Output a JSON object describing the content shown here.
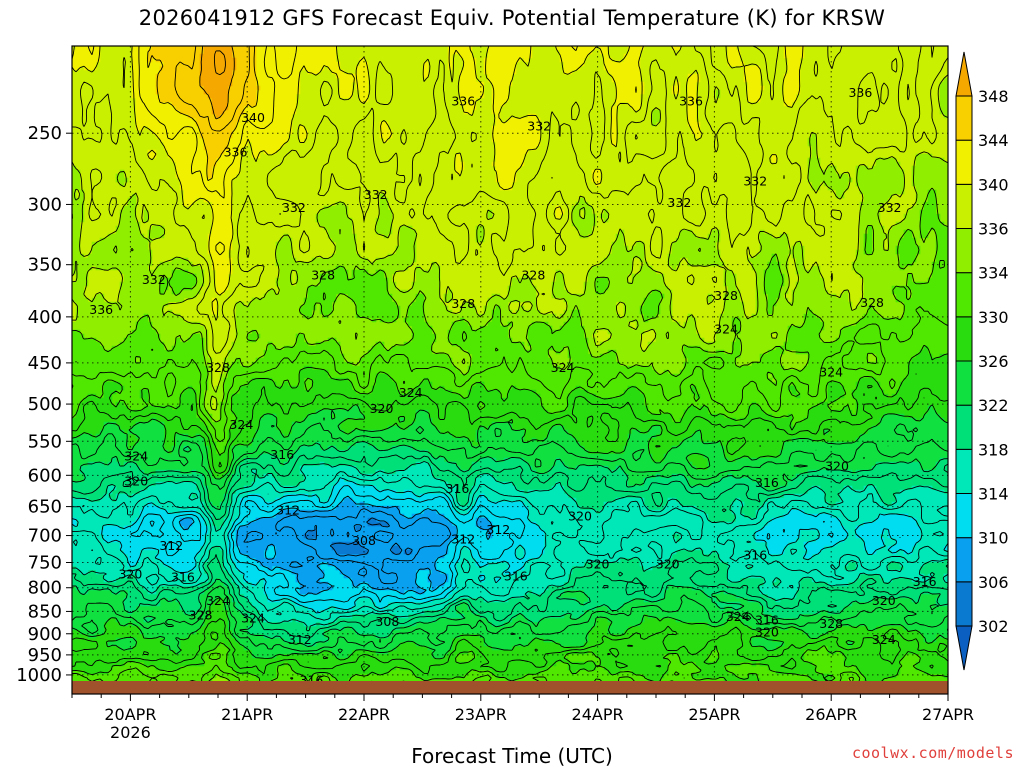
{
  "chart_data": {
    "type": "heatmap",
    "title": "2026041912 GFS Forecast Equiv. Potential Temperature (K) for KRSW",
    "xlabel": "Forecast Time (UTC)",
    "ylabel": "",
    "x_ticks": [
      "20APR",
      "21APR",
      "22APR",
      "23APR",
      "24APR",
      "25APR",
      "26APR",
      "27APR"
    ],
    "x_year_label": "2026",
    "y_ticks": [
      250,
      300,
      350,
      400,
      450,
      500,
      550,
      600,
      650,
      700,
      750,
      800,
      850,
      900,
      950,
      1000
    ],
    "y_range_hpa": [
      200,
      1050
    ],
    "x_range_days_from_20APR": [
      -0.5,
      7.0
    ],
    "colorbar": {
      "ticks": [
        302,
        306,
        310,
        314,
        318,
        322,
        326,
        330,
        334,
        336,
        340,
        344,
        348
      ],
      "levels": [
        {
          "value": 302,
          "color": "#0a7ad0"
        },
        {
          "value": 306,
          "color": "#0aa0f0"
        },
        {
          "value": 310,
          "color": "#00dcf0"
        },
        {
          "value": 314,
          "color": "#00e8b8"
        },
        {
          "value": 318,
          "color": "#00e078"
        },
        {
          "value": 322,
          "color": "#10e040"
        },
        {
          "value": 326,
          "color": "#28dc10"
        },
        {
          "value": 330,
          "color": "#50e800"
        },
        {
          "value": 334,
          "color": "#90ee00"
        },
        {
          "value": 336,
          "color": "#c8f000"
        },
        {
          "value": 340,
          "color": "#f0f000"
        },
        {
          "value": 344,
          "color": "#f8d000"
        },
        {
          "value": 348,
          "color": "#f4a800"
        }
      ]
    },
    "contour_labels": [
      {
        "text": "336",
        "t": 2.85,
        "p": 230
      },
      {
        "text": "336",
        "t": 4.8,
        "p": 230
      },
      {
        "text": "336",
        "t": 6.25,
        "p": 225
      },
      {
        "text": "340",
        "t": 1.05,
        "p": 240
      },
      {
        "text": "332",
        "t": 3.5,
        "p": 245
      },
      {
        "text": "336",
        "t": 0.9,
        "p": 262
      },
      {
        "text": "332",
        "t": 5.35,
        "p": 282
      },
      {
        "text": "332",
        "t": 2.1,
        "p": 292
      },
      {
        "text": "332",
        "t": 4.7,
        "p": 298
      },
      {
        "text": "332",
        "t": 1.4,
        "p": 302
      },
      {
        "text": "332",
        "t": 6.5,
        "p": 302
      },
      {
        "text": "328",
        "t": 1.65,
        "p": 359
      },
      {
        "text": "328",
        "t": 3.45,
        "p": 359
      },
      {
        "text": "332",
        "t": 0.2,
        "p": 363
      },
      {
        "text": "328",
        "t": 2.85,
        "p": 386
      },
      {
        "text": "328",
        "t": 5.1,
        "p": 378
      },
      {
        "text": "328",
        "t": 6.35,
        "p": 385
      },
      {
        "text": "336",
        "t": -0.25,
        "p": 392
      },
      {
        "text": "324",
        "t": 5.1,
        "p": 412
      },
      {
        "text": "324",
        "t": 3.7,
        "p": 455
      },
      {
        "text": "324",
        "t": 6.0,
        "p": 460
      },
      {
        "text": "328",
        "t": 0.75,
        "p": 455
      },
      {
        "text": "324",
        "t": 2.4,
        "p": 485
      },
      {
        "text": "320",
        "t": 2.15,
        "p": 505
      },
      {
        "text": "324",
        "t": 0.95,
        "p": 526
      },
      {
        "text": "324",
        "t": 0.05,
        "p": 570
      },
      {
        "text": "316",
        "t": 1.3,
        "p": 568
      },
      {
        "text": "320",
        "t": 6.05,
        "p": 585
      },
      {
        "text": "320",
        "t": 0.05,
        "p": 608
      },
      {
        "text": "316",
        "t": 5.45,
        "p": 610
      },
      {
        "text": "316",
        "t": 2.8,
        "p": 620
      },
      {
        "text": "312",
        "t": 1.35,
        "p": 655
      },
      {
        "text": "320",
        "t": 3.85,
        "p": 665
      },
      {
        "text": "312",
        "t": 3.15,
        "p": 688
      },
      {
        "text": "308",
        "t": 2.0,
        "p": 708
      },
      {
        "text": "312",
        "t": 2.85,
        "p": 705
      },
      {
        "text": "312",
        "t": 0.35,
        "p": 717
      },
      {
        "text": "316",
        "t": 5.35,
        "p": 735
      },
      {
        "text": "320",
        "t": 4.0,
        "p": 752
      },
      {
        "text": "320",
        "t": 4.6,
        "p": 752
      },
      {
        "text": "320",
        "t": 0.0,
        "p": 771
      },
      {
        "text": "316",
        "t": 0.45,
        "p": 777
      },
      {
        "text": "316",
        "t": 3.3,
        "p": 775
      },
      {
        "text": "316",
        "t": 6.8,
        "p": 786
      },
      {
        "text": "324",
        "t": 0.75,
        "p": 825
      },
      {
        "text": "320",
        "t": 6.45,
        "p": 825
      },
      {
        "text": "328",
        "t": 0.6,
        "p": 857
      },
      {
        "text": "324",
        "t": 1.05,
        "p": 863
      },
      {
        "text": "324",
        "t": 5.2,
        "p": 860
      },
      {
        "text": "316",
        "t": 5.45,
        "p": 868
      },
      {
        "text": "308",
        "t": 2.2,
        "p": 871
      },
      {
        "text": "328",
        "t": 6.0,
        "p": 876
      },
      {
        "text": "320",
        "t": 5.45,
        "p": 895
      },
      {
        "text": "312",
        "t": 1.45,
        "p": 912
      },
      {
        "text": "324",
        "t": 6.45,
        "p": 912
      },
      {
        "text": "316",
        "t": 1.55,
        "p": 1012
      }
    ]
  }
}
